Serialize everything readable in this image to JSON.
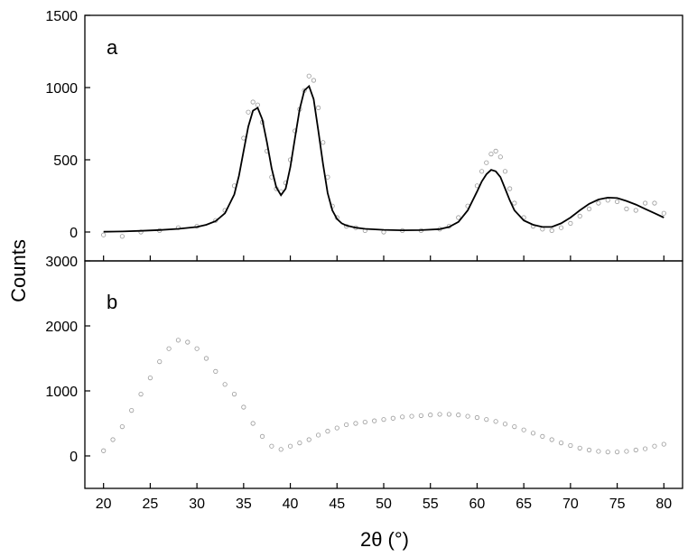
{
  "figure": {
    "y_axis_title": "Counts",
    "x_axis_title": "2θ (°)"
  },
  "chart_data": [
    {
      "type": "scatter",
      "panel_label": "a",
      "xlim": [
        18,
        82
      ],
      "ylim": [
        -200,
        1500
      ],
      "x_ticks": [
        20,
        25,
        30,
        35,
        40,
        45,
        50,
        55,
        60,
        65,
        70,
        75,
        80
      ],
      "x_tick_labels": [],
      "y_ticks": [
        0,
        500,
        1000,
        1500
      ],
      "y_tick_labels": [
        "0",
        "500",
        "1000",
        "1500"
      ],
      "grid": false,
      "series": [
        {
          "kind": "scatter",
          "marker": "open circle",
          "color": "#9a9a9a",
          "x": [
            20,
            22,
            24,
            26,
            28,
            30,
            32,
            33,
            34,
            35,
            35.5,
            36,
            36.5,
            37,
            37.5,
            38,
            38.5,
            39,
            39.5,
            40,
            40.5,
            41,
            41.5,
            42,
            42.5,
            43,
            43.5,
            44,
            44.5,
            45,
            46,
            47,
            48,
            50,
            52,
            54,
            56,
            57,
            58,
            59,
            60,
            60.5,
            61,
            61.5,
            62,
            62.5,
            63,
            63.5,
            64,
            65,
            66,
            67,
            68,
            69,
            70,
            71,
            72,
            73,
            74,
            75,
            76,
            77,
            78,
            79,
            80
          ],
          "values": [
            -20,
            -30,
            0,
            10,
            30,
            40,
            80,
            150,
            320,
            650,
            830,
            900,
            880,
            760,
            560,
            380,
            300,
            280,
            340,
            500,
            700,
            850,
            980,
            1080,
            1050,
            860,
            620,
            380,
            180,
            100,
            40,
            30,
            10,
            0,
            10,
            10,
            20,
            40,
            100,
            180,
            320,
            420,
            480,
            540,
            560,
            520,
            420,
            300,
            200,
            100,
            40,
            20,
            10,
            30,
            60,
            110,
            160,
            200,
            220,
            210,
            160,
            150,
            200,
            200,
            130
          ]
        },
        {
          "kind": "line",
          "name": "",
          "color": "#000000",
          "x": [
            20,
            22,
            24,
            26,
            28,
            30,
            31,
            32,
            33,
            34,
            34.5,
            35,
            35.5,
            36,
            36.5,
            37,
            37.5,
            38,
            38.5,
            39,
            39.5,
            40,
            40.5,
            41,
            41.5,
            42,
            42.5,
            43,
            43.5,
            44,
            44.5,
            45,
            45.5,
            46,
            47,
            48,
            50,
            52,
            54,
            56,
            57,
            58,
            59,
            60,
            60.5,
            61,
            61.5,
            62,
            62.5,
            63,
            63.5,
            64,
            65,
            66,
            67,
            68,
            69,
            70,
            71,
            72,
            73,
            74,
            75,
            76,
            77,
            78,
            79,
            80
          ],
          "values": [
            2,
            4,
            8,
            14,
            22,
            35,
            50,
            75,
            130,
            260,
            390,
            560,
            730,
            840,
            860,
            780,
            620,
            440,
            310,
            255,
            300,
            450,
            650,
            850,
            980,
            1010,
            920,
            700,
            470,
            270,
            150,
            90,
            60,
            45,
            30,
            22,
            15,
            12,
            13,
            20,
            35,
            70,
            150,
            280,
            350,
            400,
            430,
            420,
            380,
            300,
            220,
            150,
            80,
            50,
            35,
            35,
            60,
            100,
            150,
            195,
            225,
            238,
            235,
            215,
            190,
            160,
            130,
            100
          ]
        }
      ]
    },
    {
      "type": "scatter",
      "panel_label": "b",
      "xlim": [
        18,
        82
      ],
      "ylim": [
        -500,
        3000
      ],
      "x_ticks": [
        20,
        25,
        30,
        35,
        40,
        45,
        50,
        55,
        60,
        65,
        70,
        75,
        80
      ],
      "x_tick_labels": [
        "20",
        "25",
        "30",
        "35",
        "40",
        "45",
        "50",
        "55",
        "60",
        "65",
        "70",
        "75",
        "80"
      ],
      "y_ticks": [
        0,
        1000,
        2000,
        3000
      ],
      "y_tick_labels": [
        "0",
        "1000",
        "2000",
        "3000"
      ],
      "grid": false,
      "series": [
        {
          "kind": "scatter",
          "marker": "open circle",
          "color": "#9a9a9a",
          "x": [
            20,
            21,
            22,
            23,
            24,
            25,
            26,
            27,
            28,
            29,
            30,
            31,
            32,
            33,
            34,
            35,
            36,
            37,
            38,
            39,
            40,
            41,
            42,
            43,
            44,
            45,
            46,
            47,
            48,
            49,
            50,
            51,
            52,
            53,
            54,
            55,
            56,
            57,
            58,
            59,
            60,
            61,
            62,
            63,
            64,
            65,
            66,
            67,
            68,
            69,
            70,
            71,
            72,
            73,
            74,
            75,
            76,
            77,
            78,
            79,
            80
          ],
          "values": [
            80,
            250,
            450,
            700,
            950,
            1200,
            1450,
            1650,
            1780,
            1750,
            1650,
            1500,
            1300,
            1100,
            950,
            750,
            500,
            300,
            150,
            100,
            150,
            200,
            250,
            320,
            380,
            430,
            480,
            500,
            520,
            540,
            560,
            580,
            600,
            610,
            620,
            630,
            640,
            640,
            630,
            610,
            590,
            560,
            530,
            490,
            450,
            400,
            350,
            300,
            250,
            200,
            160,
            120,
            90,
            70,
            60,
            60,
            70,
            90,
            110,
            150,
            180
          ]
        }
      ]
    }
  ]
}
